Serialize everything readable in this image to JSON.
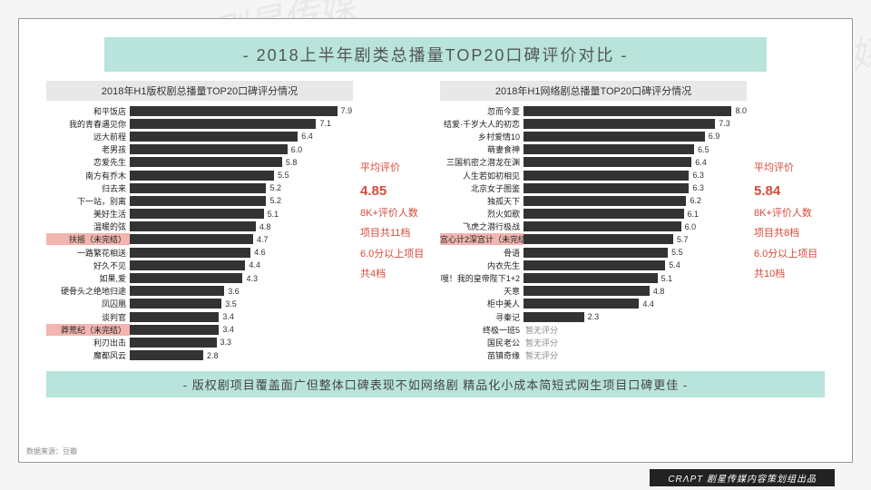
{
  "title": "- 2018上半年剧类总播量TOP20口碑评价对比 -",
  "max_value": 8.5,
  "bar_color": "#333333",
  "highlight_bg": "#f2b5b0",
  "title_bg": "#b8e4dc",
  "stat_color": "#d94a3a",
  "chart_left": {
    "title": "2018年H1版权剧总播量TOP20口碑评分情况",
    "items": [
      {
        "label": "和平饭店",
        "value": 7.9
      },
      {
        "label": "我的青春遇见你",
        "value": 7.1
      },
      {
        "label": "远大前程",
        "value": 6.4
      },
      {
        "label": "老男孩",
        "value": 6.0
      },
      {
        "label": "恋爱先生",
        "value": 5.8
      },
      {
        "label": "南方有乔木",
        "value": 5.5
      },
      {
        "label": "归去来",
        "value": 5.2
      },
      {
        "label": "下一站，别离",
        "value": 5.2
      },
      {
        "label": "美好生活",
        "value": 5.1
      },
      {
        "label": "温暖的弦",
        "value": 4.8
      },
      {
        "label": "扶摇（未完结）",
        "value": 4.7,
        "hl": true
      },
      {
        "label": "一路繁花相送",
        "value": 4.6
      },
      {
        "label": "好久不见",
        "value": 4.4
      },
      {
        "label": "如果,爱",
        "value": 4.3
      },
      {
        "label": "硬骨头之绝地归途",
        "value": 3.6
      },
      {
        "label": "凤囚凰",
        "value": 3.5
      },
      {
        "label": "谈判官",
        "value": 3.4
      },
      {
        "label": "莽荒纪（未完结）",
        "value": 3.4,
        "hl": true
      },
      {
        "label": "利刃出击",
        "value": 3.3
      },
      {
        "label": "魔都风云",
        "value": 2.8
      }
    ],
    "stats": {
      "l1": "平均评价",
      "v1": "4.85",
      "l2": "8K+评价人数",
      "l3": "项目共11档",
      "l4": "6.0分以上项目",
      "l5": "共4档"
    }
  },
  "chart_right": {
    "title": "2018年H1网络剧总播量TOP20口碑评分情况",
    "items": [
      {
        "label": "忽而今夏",
        "value": 8.0
      },
      {
        "label": "结爱·千岁大人的初恋",
        "value": 7.3
      },
      {
        "label": "乡村爱情10",
        "value": 6.9
      },
      {
        "label": "萌妻食神",
        "value": 6.5
      },
      {
        "label": "三国机密之潜龙在渊",
        "value": 6.4
      },
      {
        "label": "人生若如初相见",
        "value": 6.3
      },
      {
        "label": "北京女子图鉴",
        "value": 6.3
      },
      {
        "label": "独孤天下",
        "value": 6.2
      },
      {
        "label": "烈火如歌",
        "value": 6.1
      },
      {
        "label": "飞虎之潜行极战",
        "value": 6.0
      },
      {
        "label": "宫心计2深宫计（未完结）",
        "value": 5.7,
        "hl": true
      },
      {
        "label": "骨语",
        "value": 5.5
      },
      {
        "label": "内衣先生",
        "value": 5.4
      },
      {
        "label": "哦！我的皇帝陛下1+2",
        "value": 5.1
      },
      {
        "label": "天意",
        "value": 4.8
      },
      {
        "label": "柜中美人",
        "value": 4.4
      },
      {
        "label": "寻秦记",
        "value": 2.3
      },
      {
        "label": "终极一班5",
        "text": "暂无评分"
      },
      {
        "label": "国民老公",
        "text": "暂无评分"
      },
      {
        "label": "苗镇奇缘",
        "text": "暂无评分"
      }
    ],
    "stats": {
      "l1": "平均评价",
      "v1": "5.84",
      "l2": "8K+评价人数",
      "l3": "项目共8档",
      "l4": "6.0分以上项目",
      "l5": "共10档"
    }
  },
  "bottom": "- 版权剧项目覆盖面广但整体口碑表现不如网络剧 精品化小成本简短式网生项目口碑更佳 -",
  "source": "数据来源：豆瓣",
  "brand": "CRΛPT 剧星传媒内容策划组出品",
  "watermark": "Vision Star 剧星传媒"
}
